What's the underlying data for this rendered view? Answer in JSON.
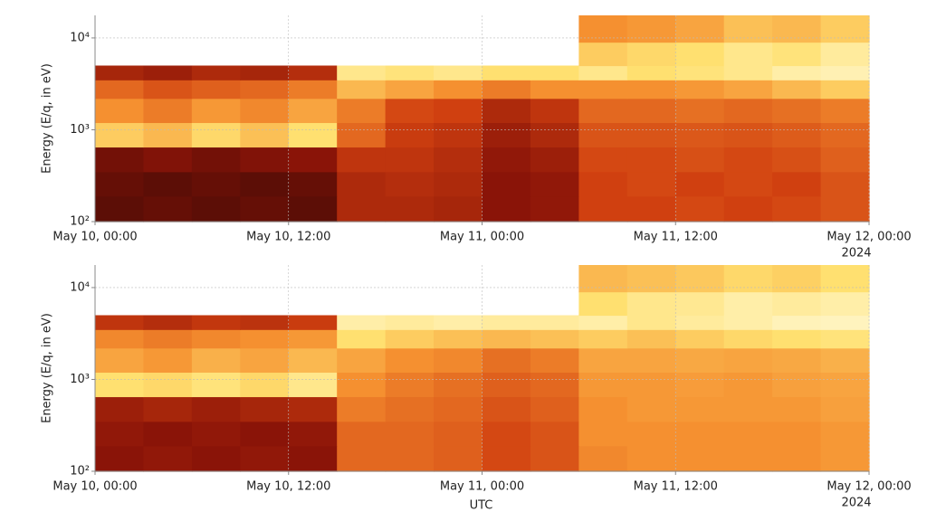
{
  "chart_data": [
    {
      "type": "heatmap",
      "ylabel": "Energy (E/q, in eV)",
      "annotation": "2024",
      "xlim": [
        0,
        48
      ],
      "ylim": [
        100,
        17600
      ],
      "log_y": true,
      "grid": true,
      "xticks": [
        {
          "value": 0,
          "label": "May 10, 00:00"
        },
        {
          "value": 12,
          "label": "May 10, 12:00"
        },
        {
          "value": 24,
          "label": "May 11, 00:00"
        },
        {
          "value": 36,
          "label": "May 11, 12:00"
        },
        {
          "value": 48,
          "label": "May 12, 00:00"
        }
      ],
      "yticks": [
        {
          "value": 100,
          "label": "10²"
        },
        {
          "value": 1000,
          "label": "10³"
        },
        {
          "value": 10000,
          "label": "10⁴"
        }
      ],
      "colorscale": [
        "#2e0804",
        "#8a1408",
        "#d04010",
        "#f59030",
        "#ffe070",
        "#fffbe0"
      ],
      "x_edges": [
        0,
        3,
        6,
        9,
        12,
        15,
        18,
        21,
        24,
        27,
        30,
        33,
        36,
        39,
        42,
        45,
        48
      ],
      "y_edges": [
        100,
        190,
        350,
        650,
        1200,
        2200,
        3500,
        5000,
        9000,
        17600
      ],
      "values": [
        [
          0.1,
          0.12,
          0.1,
          0.12,
          0.1,
          0.3,
          0.3,
          0.28,
          0.2,
          0.22,
          0.4,
          0.4,
          0.42,
          0.4,
          0.42,
          0.45
        ],
        [
          0.12,
          0.1,
          0.12,
          0.1,
          0.12,
          0.3,
          0.32,
          0.3,
          0.2,
          0.22,
          0.4,
          0.42,
          0.4,
          0.42,
          0.4,
          0.45
        ],
        [
          0.15,
          0.18,
          0.15,
          0.18,
          0.2,
          0.35,
          0.35,
          0.32,
          0.22,
          0.25,
          0.42,
          0.42,
          0.44,
          0.42,
          0.44,
          0.48
        ],
        [
          0.75,
          0.7,
          0.78,
          0.72,
          0.8,
          0.5,
          0.38,
          0.35,
          0.25,
          0.3,
          0.45,
          0.45,
          0.46,
          0.45,
          0.47,
          0.5
        ],
        [
          0.6,
          0.55,
          0.62,
          0.58,
          0.65,
          0.55,
          0.42,
          0.4,
          0.3,
          0.35,
          0.5,
          0.5,
          0.52,
          0.5,
          0.52,
          0.55
        ],
        [
          0.5,
          0.45,
          0.48,
          0.5,
          0.55,
          0.7,
          0.65,
          0.6,
          0.55,
          0.6,
          0.6,
          0.6,
          0.62,
          0.65,
          0.7,
          0.75
        ],
        [
          0.28,
          0.25,
          0.3,
          0.28,
          0.32,
          0.85,
          0.82,
          0.85,
          0.8,
          0.8,
          0.85,
          0.8,
          0.82,
          0.85,
          0.9,
          0.92
        ],
        [
          null,
          null,
          null,
          null,
          null,
          null,
          null,
          null,
          null,
          null,
          0.75,
          0.78,
          0.8,
          0.85,
          0.82,
          0.88
        ],
        [
          null,
          null,
          null,
          null,
          null,
          null,
          null,
          null,
          null,
          null,
          0.6,
          0.62,
          0.65,
          0.72,
          0.7,
          0.75
        ]
      ]
    },
    {
      "type": "heatmap",
      "ylabel": "Energy (E/q, in eV)",
      "annotation": "2024",
      "xlabel": "UTC",
      "xlim": [
        0,
        48
      ],
      "ylim": [
        100,
        17600
      ],
      "log_y": true,
      "grid": true,
      "xticks": [
        {
          "value": 0,
          "label": "May 10, 00:00"
        },
        {
          "value": 12,
          "label": "May 10, 12:00"
        },
        {
          "value": 24,
          "label": "May 11, 00:00"
        },
        {
          "value": 36,
          "label": "May 11, 12:00"
        },
        {
          "value": 48,
          "label": "May 12, 00:00"
        }
      ],
      "yticks": [
        {
          "value": 100,
          "label": "10²"
        },
        {
          "value": 1000,
          "label": "10³"
        },
        {
          "value": 10000,
          "label": "10⁴"
        }
      ],
      "colorscale": [
        "#2e0804",
        "#8a1408",
        "#d04010",
        "#f59030",
        "#ffe070",
        "#fffbe0"
      ],
      "x_edges": [
        0,
        3,
        6,
        9,
        12,
        15,
        18,
        21,
        24,
        27,
        30,
        33,
        36,
        39,
        42,
        45,
        48
      ],
      "y_edges": [
        100,
        190,
        350,
        650,
        1200,
        2200,
        3500,
        5000,
        9000,
        17600
      ],
      "values": [
        [
          0.2,
          0.22,
          0.2,
          0.22,
          0.2,
          0.5,
          0.5,
          0.48,
          0.42,
          0.45,
          0.58,
          0.6,
          0.6,
          0.6,
          0.6,
          0.62
        ],
        [
          0.22,
          0.2,
          0.22,
          0.2,
          0.22,
          0.5,
          0.5,
          0.48,
          0.42,
          0.45,
          0.6,
          0.6,
          0.6,
          0.6,
          0.6,
          0.62
        ],
        [
          0.25,
          0.28,
          0.25,
          0.28,
          0.3,
          0.55,
          0.52,
          0.5,
          0.45,
          0.48,
          0.6,
          0.62,
          0.62,
          0.62,
          0.62,
          0.64
        ],
        [
          0.8,
          0.78,
          0.82,
          0.78,
          0.85,
          0.6,
          0.55,
          0.52,
          0.48,
          0.5,
          0.62,
          0.62,
          0.63,
          0.62,
          0.64,
          0.65
        ],
        [
          0.65,
          0.62,
          0.68,
          0.65,
          0.7,
          0.65,
          0.6,
          0.58,
          0.52,
          0.55,
          0.65,
          0.65,
          0.66,
          0.65,
          0.66,
          0.68
        ],
        [
          0.58,
          0.55,
          0.58,
          0.6,
          0.62,
          0.8,
          0.75,
          0.72,
          0.7,
          0.72,
          0.75,
          0.72,
          0.75,
          0.78,
          0.8,
          0.82
        ],
        [
          0.35,
          0.32,
          0.36,
          0.34,
          0.38,
          0.9,
          0.88,
          0.9,
          0.88,
          0.88,
          0.9,
          0.85,
          0.88,
          0.9,
          0.93,
          0.94
        ],
        [
          null,
          null,
          null,
          null,
          null,
          null,
          null,
          null,
          null,
          null,
          0.8,
          0.85,
          0.86,
          0.9,
          0.88,
          0.9
        ],
        [
          null,
          null,
          null,
          null,
          null,
          null,
          null,
          null,
          null,
          null,
          0.7,
          0.72,
          0.74,
          0.78,
          0.76,
          0.8
        ]
      ]
    }
  ]
}
